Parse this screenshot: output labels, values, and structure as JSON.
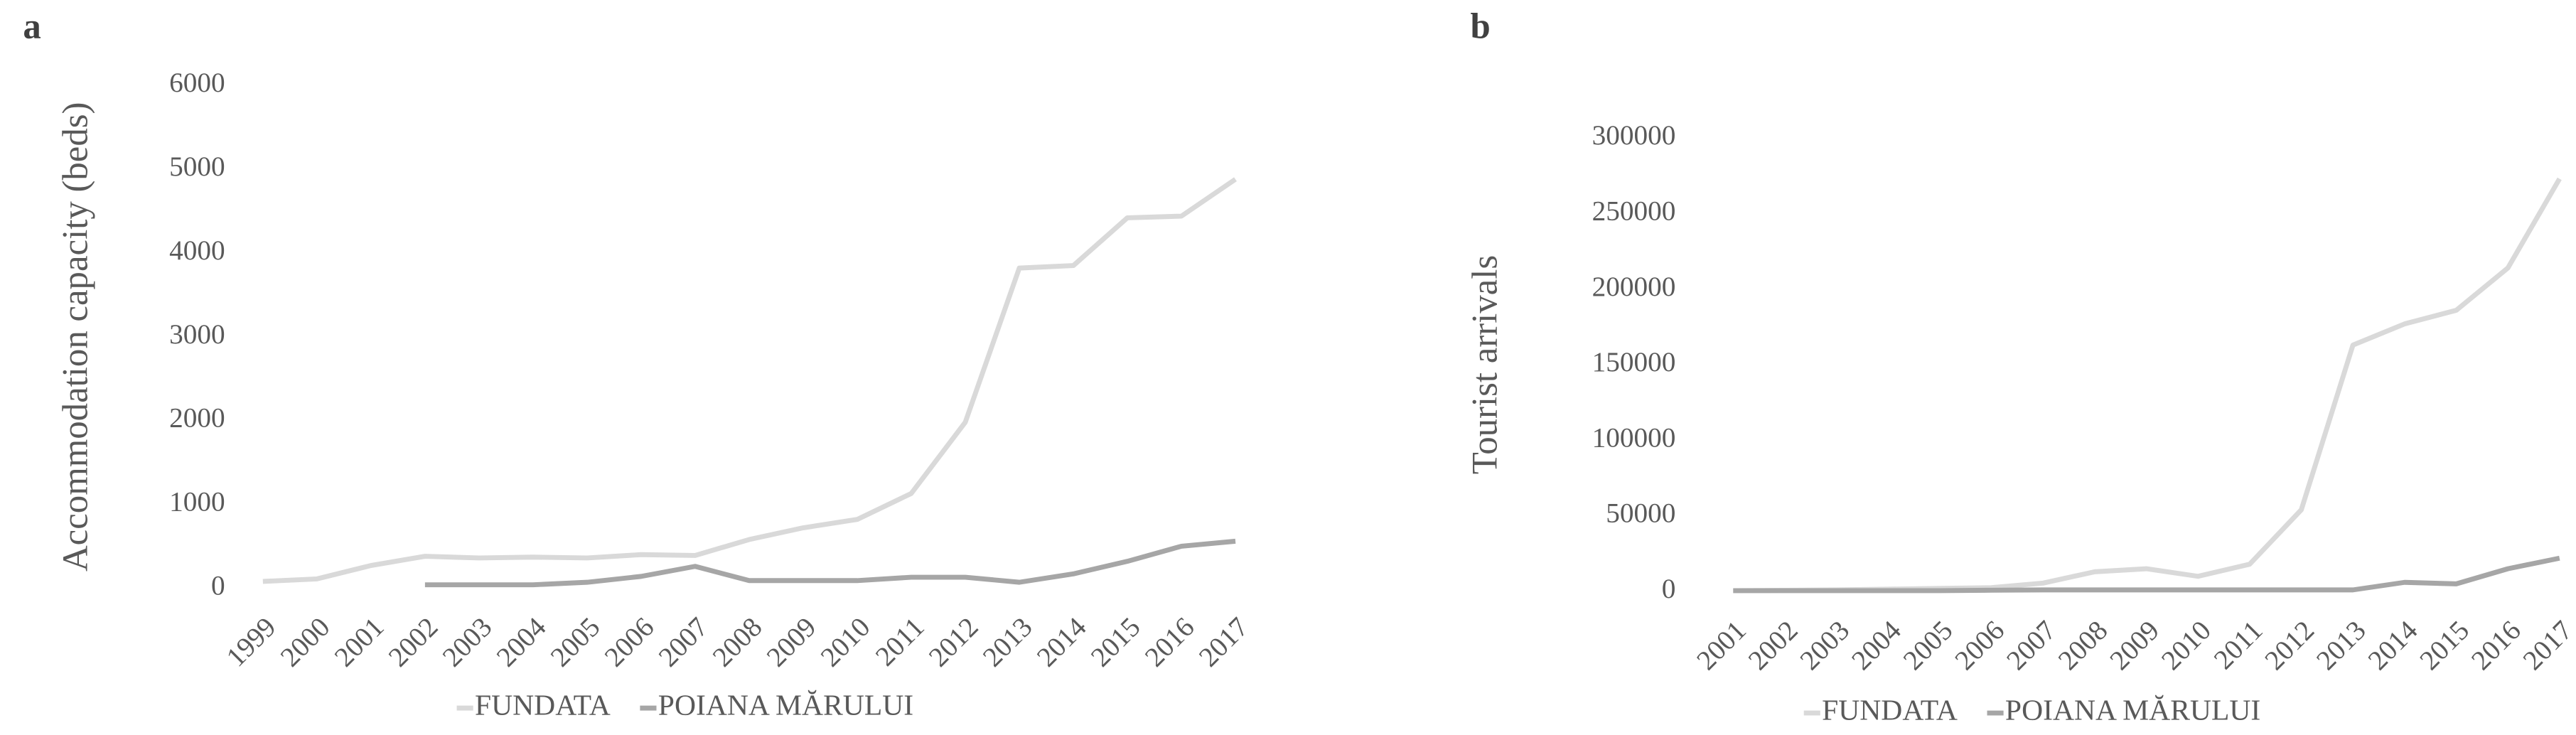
{
  "chart_data": [
    {
      "type": "line",
      "label": "a",
      "y_label": "Accommodation capacity (beds)",
      "categories": [
        "1999",
        "2000",
        "2001",
        "2002",
        "2003",
        "2004",
        "2005",
        "2006",
        "2007",
        "2008",
        "2009",
        "2010",
        "2011",
        "2012",
        "2013",
        "2014",
        "2015",
        "2016",
        "2017"
      ],
      "series": [
        {
          "name": "FUNDATA",
          "color": "#d9d9d9",
          "values": [
            80,
            110,
            270,
            380,
            360,
            370,
            360,
            400,
            390,
            580,
            720,
            820,
            1130,
            1980,
            3820,
            3850,
            4420,
            4440,
            4880
          ]
        },
        {
          "name": "POIANA MĂRULUI",
          "color": "#a6a6a6",
          "values": [
            null,
            null,
            null,
            40,
            40,
            40,
            70,
            140,
            260,
            90,
            90,
            90,
            130,
            130,
            70,
            170,
            320,
            500,
            560
          ]
        }
      ],
      "ylim": [
        0,
        6000
      ],
      "yticks": [
        0,
        1000,
        2000,
        3000,
        4000,
        5000,
        6000
      ],
      "grid": false,
      "legend": "bottom"
    },
    {
      "type": "line",
      "label": "b",
      "y_label": "Tourist arrivals",
      "categories": [
        "2001",
        "2002",
        "2003",
        "2004",
        "2005",
        "2006",
        "2007",
        "2008",
        "2009",
        "2010",
        "2011",
        "2012",
        "2013",
        "2014",
        "2015",
        "2016",
        "2017"
      ],
      "series": [
        {
          "name": "FUNDATA",
          "color": "#d9d9d9",
          "values": [
            500,
            700,
            1000,
            1500,
            2000,
            2500,
            5500,
            13000,
            15000,
            10000,
            18000,
            54000,
            163000,
            177000,
            186000,
            214000,
            273000
          ]
        },
        {
          "name": "POIANA MĂRULUI",
          "color": "#a6a6a6",
          "values": [
            500,
            500,
            500,
            500,
            500,
            800,
            1000,
            1000,
            1000,
            1000,
            1000,
            1000,
            1000,
            6000,
            5000,
            15000,
            22000
          ]
        }
      ],
      "ylim": [
        0,
        300000
      ],
      "yticks": [
        0,
        50000,
        100000,
        150000,
        200000,
        250000,
        300000
      ],
      "grid": false,
      "legend": "bottom"
    }
  ]
}
